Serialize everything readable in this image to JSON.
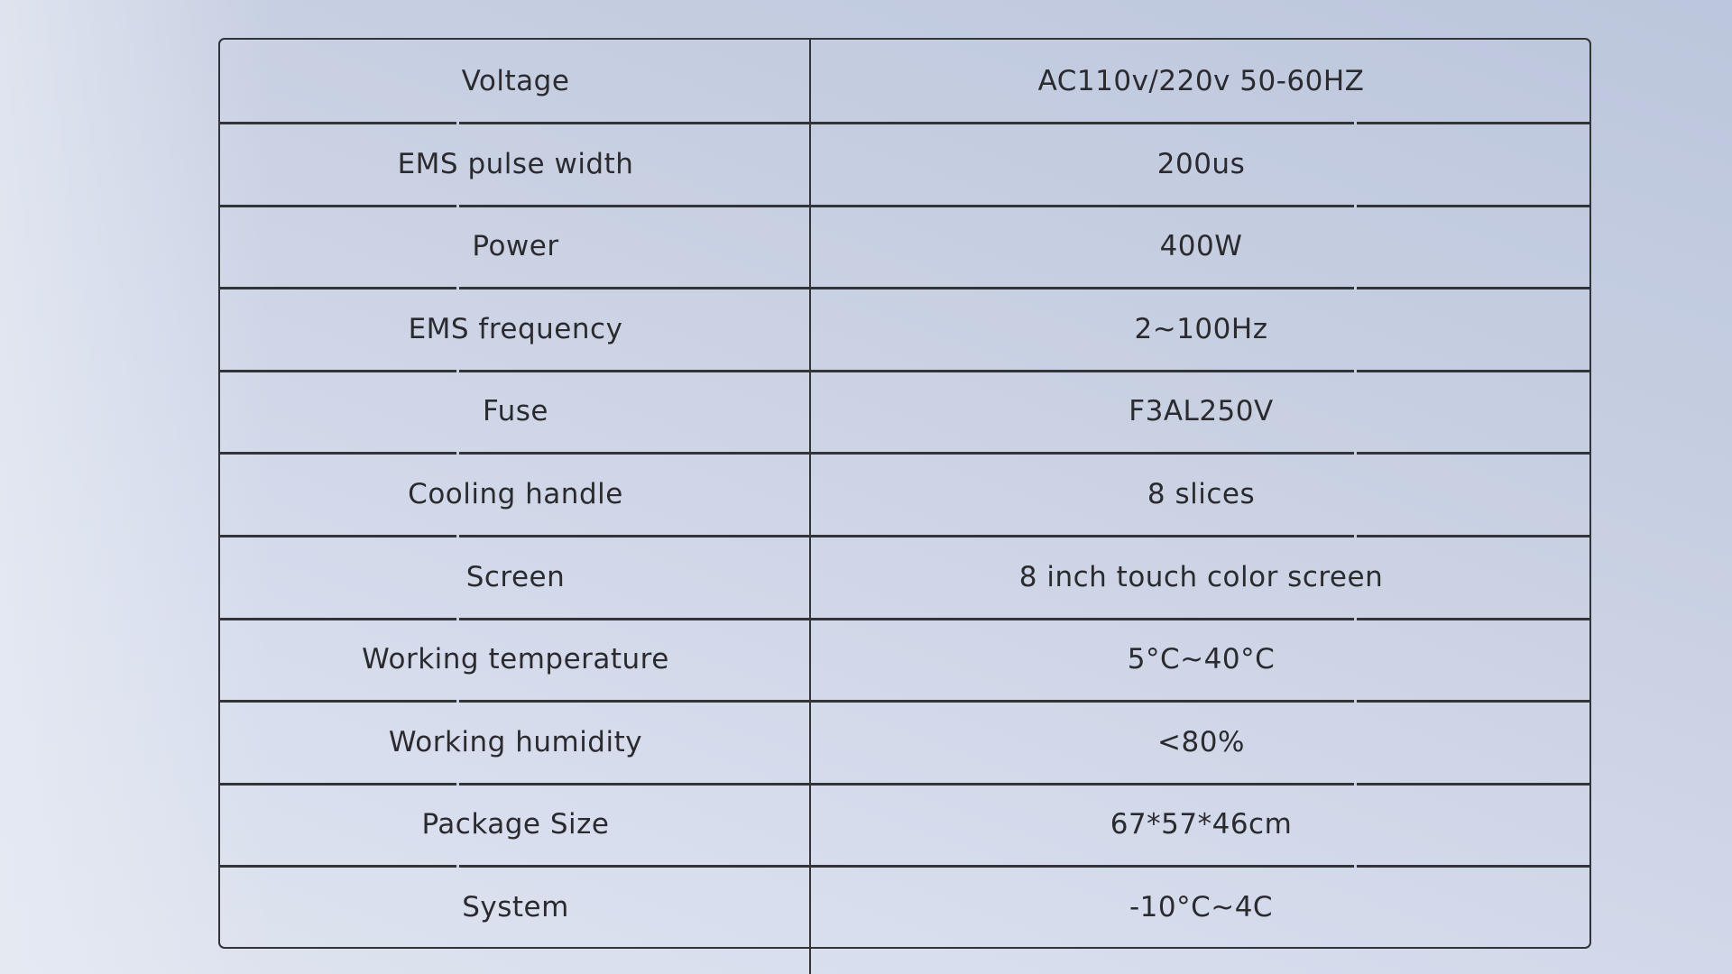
{
  "specs": [
    {
      "label": "Voltage",
      "value": "AC110v/220v 50-60HZ"
    },
    {
      "label": "EMS pulse width",
      "value": "200us"
    },
    {
      "label": "Power",
      "value": "400W"
    },
    {
      "label": "EMS frequency",
      "value": "2~100Hz"
    },
    {
      "label": "Fuse",
      "value": "F3AL250V"
    },
    {
      "label": "Cooling handle",
      "value": "8 slices"
    },
    {
      "label": "Screen",
      "value": "8 inch touch color screen"
    },
    {
      "label": "Working temperature",
      "value": "5°C~40°C"
    },
    {
      "label": "Working humidity",
      "value": "<80%"
    },
    {
      "label": "Package Size",
      "value": "67*57*46cm"
    },
    {
      "label": "System",
      "value": "-10°C~4C"
    }
  ]
}
